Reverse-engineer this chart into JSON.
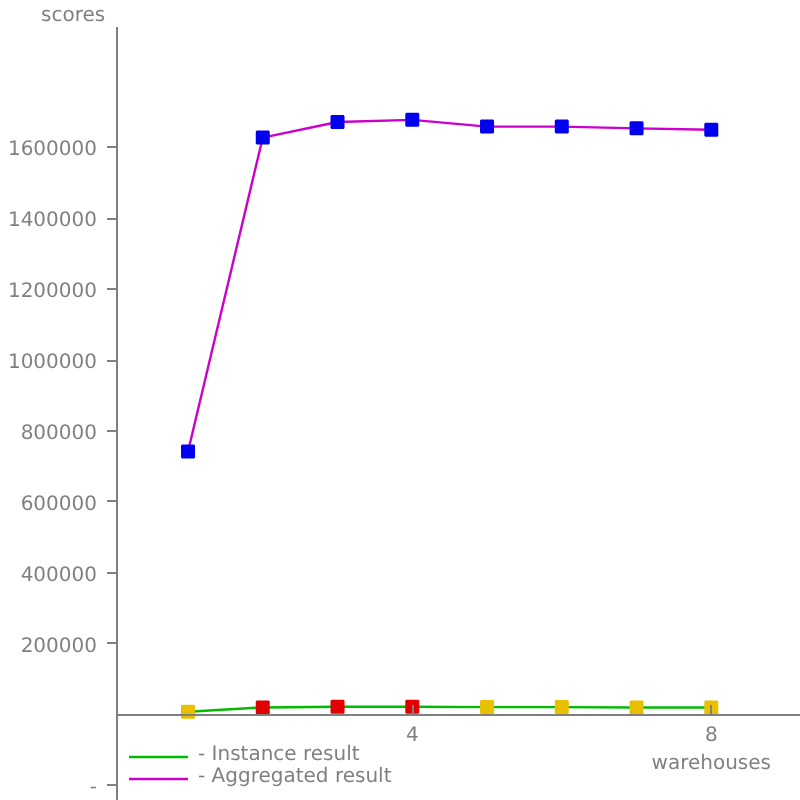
{
  "chart_data": {
    "type": "line",
    "xlabel": "warehouses",
    "ylabel": "scores",
    "x": [
      1,
      2,
      3,
      4,
      5,
      6,
      7,
      8
    ],
    "series": [
      {
        "name": "- Instance result",
        "color": "#00bb00",
        "colors": [
          "#e8c000",
          "#e00000",
          "#e00000",
          "#e00000",
          "#e8c000",
          "#e8c000",
          "#e8c000",
          "#e8c000"
        ],
        "values": [
          8000,
          20000,
          22000,
          22000,
          21000,
          21000,
          20000,
          20000
        ]
      },
      {
        "name": "- Aggregated result",
        "color": "#cc00cc",
        "colors": [
          "#0000ee",
          "#0000ee",
          "#0000ee",
          "#0000ee",
          "#0000ee",
          "#0000ee",
          "#0000ee",
          "#0000ee"
        ],
        "values": [
          742000,
          1628000,
          1672000,
          1678000,
          1659000,
          1659000,
          1654000,
          1650000
        ]
      }
    ],
    "xlim": [
      0.05,
      9.2
    ],
    "ylim": [
      -244000,
      1940000
    ],
    "xticks": [
      4,
      8
    ],
    "yticks": [
      {
        "value": -200000,
        "label": "-"
      },
      200000,
      400000,
      600000,
      800000,
      1000000,
      1200000,
      1400000,
      1600000
    ],
    "grid": false,
    "legend": "bottom left",
    "marker": "square",
    "line_style": "solid"
  }
}
